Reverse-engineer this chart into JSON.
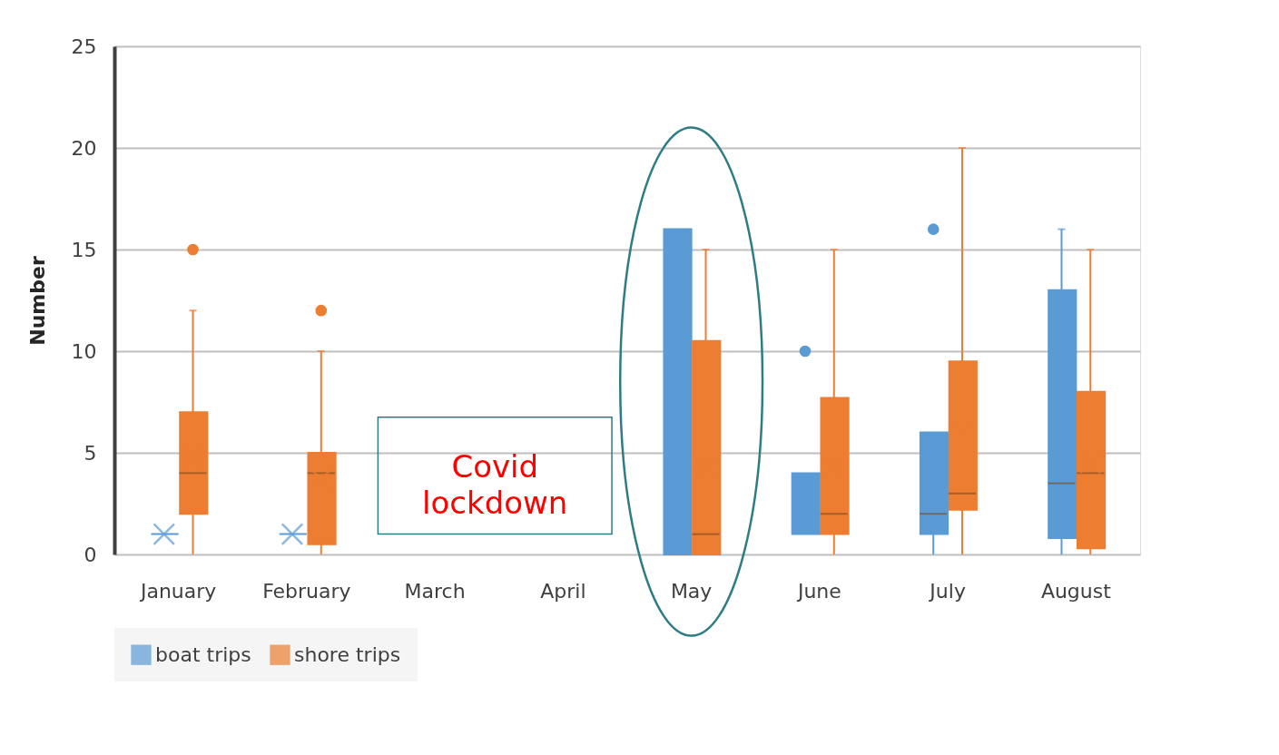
{
  "chart_data": {
    "type": "box",
    "ylabel": "Number",
    "categories": [
      "January",
      "February",
      "March",
      "April",
      "May",
      "June",
      "July",
      "August"
    ],
    "ylim": [
      0,
      25
    ],
    "yticks": [
      0,
      5,
      10,
      15,
      20,
      25
    ],
    "grid": "y",
    "legend": "bottom",
    "annotations": [
      "Covid lockdown"
    ],
    "series": [
      {
        "name": "boat trips",
        "color": "#5b9bd5",
        "boxes": [
          {
            "low": 1,
            "q1": 1,
            "median": 1,
            "q3": 1,
            "high": 1,
            "mean": 1
          },
          {
            "low": 1,
            "q1": 1,
            "median": 1,
            "q3": 1,
            "high": 1,
            "mean": 1
          },
          null,
          null,
          {
            "low": 0,
            "q1": 0,
            "median": 0,
            "q3": 16,
            "high": 16,
            "mean": 5.3
          },
          {
            "low": 1,
            "q1": 1,
            "median": 1,
            "q3": 4,
            "high": 4,
            "mean": 2.7,
            "outliers": [
              10
            ]
          },
          {
            "low": 0,
            "q1": 1,
            "median": 2,
            "q3": 6,
            "high": 6,
            "mean": 4.2,
            "outliers": [
              16
            ]
          },
          {
            "low": 0,
            "q1": 0.8,
            "median": 3.5,
            "q3": 13,
            "high": 16,
            "mean": 5.8
          }
        ]
      },
      {
        "name": "shore trips",
        "color": "#ed7d31",
        "boxes": [
          {
            "low": 0,
            "q1": 2,
            "median": 4,
            "q3": 7,
            "high": 12,
            "mean": 4.8,
            "outliers": [
              15
            ]
          },
          {
            "low": 0,
            "q1": 0.5,
            "median": 4,
            "q3": 5,
            "high": 10,
            "mean": 3.7,
            "outliers": [
              12
            ]
          },
          null,
          null,
          {
            "low": 0,
            "q1": 0,
            "median": 1,
            "q3": 10.5,
            "high": 15,
            "mean": 4.3
          },
          {
            "low": 0,
            "q1": 1,
            "median": 2,
            "q3": 7.7,
            "high": 15,
            "mean": 4.3
          },
          {
            "low": 0,
            "q1": 2.2,
            "median": 3,
            "q3": 9.5,
            "high": 20,
            "mean": 6
          },
          {
            "low": 0,
            "q1": 0.3,
            "median": 4,
            "q3": 8,
            "high": 15,
            "mean": 4.5
          }
        ]
      }
    ]
  }
}
